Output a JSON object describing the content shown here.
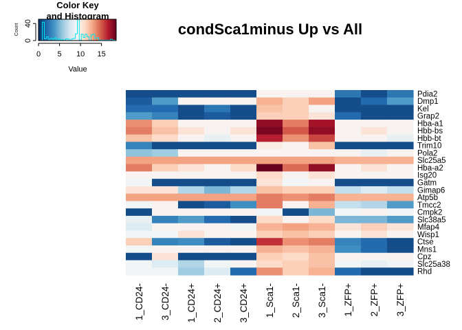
{
  "chart_data": {
    "type": "heatmap",
    "title": "condSca1minus Up vs All",
    "columns": [
      "1_CD24-",
      "3_CD24-",
      "1_CD24+",
      "2_CD24+",
      "3_CD24+",
      "1_Sca1-",
      "2_Sca1-",
      "3_Sca1-",
      "1_ZFP+",
      "2_ZFP+",
      "3_ZFP+"
    ],
    "rows": [
      "Pdia2",
      "Dmp1",
      "Kel",
      "Grap2",
      "Hba-a1",
      "Hbb-bs",
      "Hbb-bt",
      "Trim10",
      "Pola2",
      "Slc25a5",
      "Hba-a2",
      "Isg20",
      "Gatm",
      "Gimap6",
      "Atp5b",
      "Tmcc2",
      "Cmpk2",
      "Slc38a5",
      "Mfap4",
      "Wisp1",
      "Ctse",
      "Mns1",
      "Cpz",
      "Slc25a38",
      "Rhd"
    ],
    "values": [
      [
        1.0,
        1.0,
        1.0,
        1.0,
        1.0,
        9.5,
        9.5,
        9.5,
        2.5,
        1.0,
        2.5
      ],
      [
        1.5,
        4.0,
        9.5,
        9.5,
        9.5,
        12.5,
        11.5,
        13.0,
        1.0,
        2.0,
        4.0
      ],
      [
        2.0,
        2.0,
        1.0,
        2.5,
        1.0,
        12.0,
        11.5,
        9.5,
        1.0,
        1.0,
        1.0
      ],
      [
        4.0,
        3.0,
        1.0,
        1.5,
        1.0,
        11.5,
        11.5,
        10.5,
        2.0,
        1.0,
        1.0
      ],
      [
        13.5,
        11.5,
        9.5,
        9.5,
        9.5,
        17.5,
        14.0,
        17.0,
        9.5,
        9.5,
        9.5
      ],
      [
        14.0,
        12.0,
        10.5,
        9.5,
        10.5,
        18.0,
        15.0,
        17.5,
        9.5,
        10.5,
        9.5
      ],
      [
        12.0,
        11.0,
        9.5,
        8.5,
        9.5,
        16.5,
        13.5,
        15.5,
        9.5,
        9.5,
        8.5
      ],
      [
        3.0,
        1.0,
        1.0,
        1.0,
        1.0,
        10.0,
        9.5,
        12.0,
        1.0,
        1.0,
        1.0
      ],
      [
        5.5,
        6.0,
        9.5,
        9.5,
        9.5,
        9.5,
        9.5,
        9.5,
        9.5,
        8.5,
        9.5
      ],
      [
        13.0,
        13.0,
        13.0,
        13.0,
        13.0,
        13.0,
        13.0,
        13.0,
        12.5,
        12.5,
        12.5
      ],
      [
        14.0,
        11.5,
        10.5,
        9.5,
        11.0,
        18.5,
        14.5,
        17.5,
        9.5,
        10.5,
        9.5
      ],
      [
        9.5,
        9.5,
        9.5,
        9.5,
        9.5,
        11.0,
        9.5,
        10.5,
        9.5,
        9.5,
        9.5
      ],
      [
        9.0,
        1.0,
        1.0,
        1.0,
        1.0,
        10.5,
        9.0,
        9.5,
        1.0,
        1.0,
        1.0
      ],
      [
        10.5,
        10.5,
        6.5,
        5.0,
        6.5,
        12.0,
        11.5,
        11.5,
        7.0,
        8.0,
        7.0
      ],
      [
        13.0,
        13.0,
        13.0,
        13.0,
        13.0,
        14.0,
        13.5,
        14.0,
        12.5,
        12.5,
        12.5
      ],
      [
        9.0,
        9.5,
        1.0,
        1.5,
        3.5,
        14.0,
        9.5,
        12.5,
        7.0,
        6.5,
        4.0
      ],
      [
        1.0,
        9.5,
        9.5,
        9.5,
        9.5,
        9.0,
        1.0,
        5.0,
        9.0,
        9.5,
        9.0
      ],
      [
        8.5,
        3.0,
        4.0,
        2.0,
        1.0,
        11.0,
        9.5,
        11.0,
        5.0,
        5.0,
        4.0
      ],
      [
        8.0,
        9.5,
        9.5,
        9.5,
        9.0,
        12.5,
        13.0,
        12.5,
        10.5,
        11.5,
        10.5
      ],
      [
        9.0,
        9.0,
        10.5,
        9.5,
        9.5,
        11.5,
        12.0,
        11.5,
        9.5,
        10.5,
        9.5
      ],
      [
        11.5,
        3.0,
        3.5,
        1.5,
        1.0,
        16.0,
        13.5,
        14.0,
        3.0,
        2.0,
        1.0
      ],
      [
        9.0,
        9.5,
        9.5,
        9.5,
        9.5,
        12.5,
        12.0,
        12.5,
        3.5,
        2.0,
        1.0
      ],
      [
        1.0,
        10.5,
        1.0,
        1.0,
        1.0,
        11.5,
        11.0,
        12.0,
        9.5,
        9.5,
        9.5
      ],
      [
        9.0,
        8.0,
        6.5,
        9.0,
        9.5,
        11.0,
        11.5,
        12.0,
        9.0,
        8.5,
        9.0
      ],
      [
        9.0,
        9.0,
        6.0,
        8.0,
        2.0,
        13.5,
        11.5,
        12.5,
        2.0,
        1.0,
        1.0
      ]
    ],
    "color_key": {
      "title": "Color Key and Histogram",
      "xlabel": "Value",
      "ylabel": "Count",
      "xticks": [
        0,
        5,
        10,
        15
      ],
      "yticks": [
        0,
        40
      ],
      "xlim": [
        0,
        18.5
      ],
      "ylim": [
        0,
        50
      ],
      "histogram_line_color": "#00e5ee",
      "palette": [
        "#053061",
        "#2166ac",
        "#4393c3",
        "#92c5de",
        "#d1e5f0",
        "#f7f7f7",
        "#fddbc7",
        "#f4a582",
        "#d6604d",
        "#b2182b",
        "#67001f"
      ]
    }
  }
}
